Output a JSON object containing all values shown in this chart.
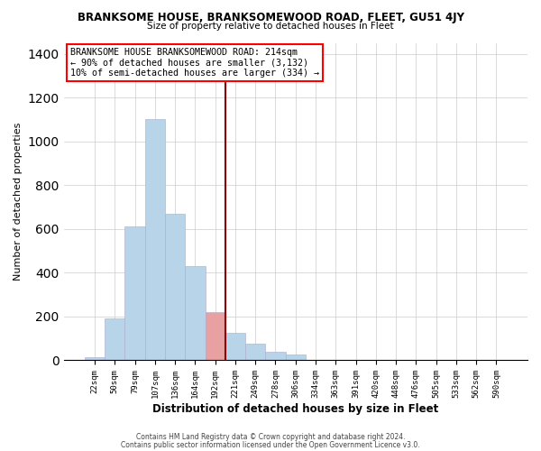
{
  "title": "BRANKSOME HOUSE, BRANKSOMEWOOD ROAD, FLEET, GU51 4JY",
  "subtitle": "Size of property relative to detached houses in Fleet",
  "xlabel": "Distribution of detached houses by size in Fleet",
  "ylabel": "Number of detached properties",
  "bin_labels": [
    "22sqm",
    "50sqm",
    "79sqm",
    "107sqm",
    "136sqm",
    "164sqm",
    "192sqm",
    "221sqm",
    "249sqm",
    "278sqm",
    "306sqm",
    "334sqm",
    "363sqm",
    "391sqm",
    "420sqm",
    "448sqm",
    "476sqm",
    "505sqm",
    "533sqm",
    "562sqm",
    "590sqm"
  ],
  "bar_heights": [
    15,
    190,
    610,
    1100,
    670,
    430,
    220,
    125,
    75,
    40,
    25,
    0,
    0,
    0,
    0,
    0,
    0,
    0,
    0,
    0,
    0
  ],
  "bar_color": "#b8d4e8",
  "highlight_bar_index": 6,
  "highlight_color": "#e8a0a0",
  "vline_index": 7,
  "vline_color": "#8b0000",
  "annotation_title": "BRANKSOME HOUSE BRANKSOMEWOOD ROAD: 214sqm",
  "annotation_line1": "← 90% of detached houses are smaller (3,132)",
  "annotation_line2": "10% of semi-detached houses are larger (334) →",
  "ylim": [
    0,
    1450
  ],
  "yticks": [
    0,
    200,
    400,
    600,
    800,
    1000,
    1200,
    1400
  ],
  "footnote1": "Contains HM Land Registry data © Crown copyright and database right 2024.",
  "footnote2": "Contains public sector information licensed under the Open Government Licence v3.0.",
  "background_color": "#ffffff"
}
